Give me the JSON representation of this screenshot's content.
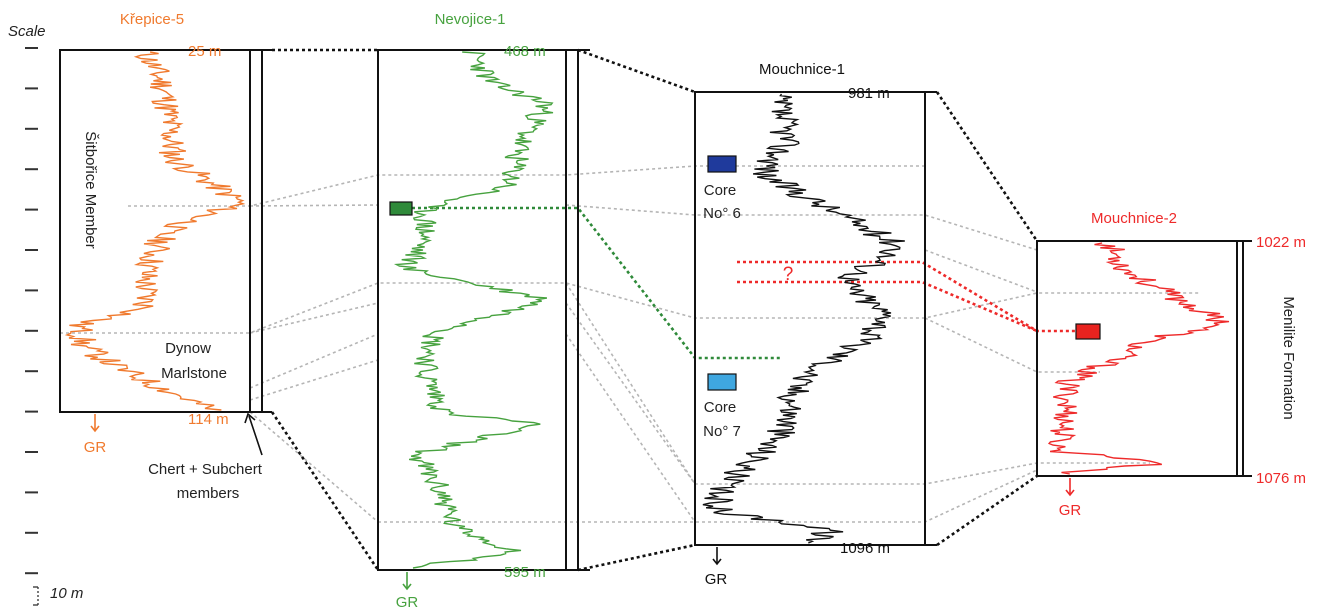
{
  "scale": {
    "title": "Scale",
    "bar_label": "10 m"
  },
  "colors": {
    "krepice": "#f07a2e",
    "nevojice": "#47a23f",
    "mouchnice1": "#111111",
    "mouchnice2": "#ee2a2a",
    "core6": "#1f3a9c",
    "core7": "#3fa7e0",
    "nevojice_sample": "#2f8a3a",
    "mouchnice2_sample": "#e8231f",
    "correlation": "#b5b5b5"
  },
  "wells": [
    {
      "name": "Křepice-5",
      "top_depth": "25 m",
      "bottom_depth": "114 m",
      "log": "GR",
      "units": [
        "Šitbořice Member",
        "Dynow",
        "Marlstone"
      ]
    },
    {
      "name": "Nevojice-1",
      "top_depth": "468 m",
      "bottom_depth": "595 m",
      "log": "GR"
    },
    {
      "name": "Mouchnice-1",
      "top_depth": "981 m",
      "bottom_depth": "1096 m",
      "log": "GR",
      "cores": [
        {
          "line1": "Core",
          "line2": "No° 6"
        },
        {
          "line1": "Core",
          "line2": "No° 7"
        }
      ],
      "uncertain_mark": "?"
    },
    {
      "name": "Mouchnice-2",
      "top_depth": "1022 m",
      "bottom_depth": "1076 m",
      "log": "GR",
      "unit": "Menilite Formation"
    }
  ],
  "annotations": {
    "chert_line1": "Chert + Subchert",
    "chert_line2": "members"
  }
}
